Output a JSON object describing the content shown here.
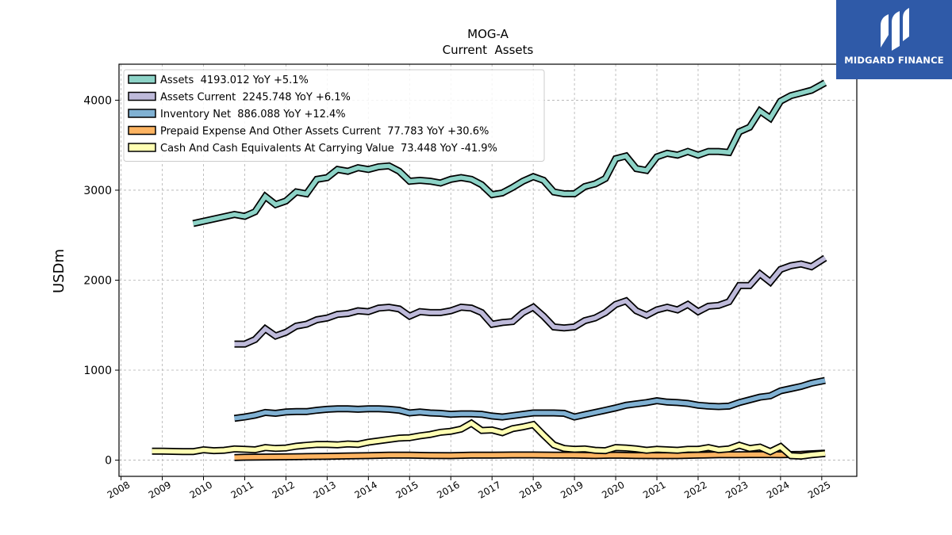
{
  "logo": {
    "text": "MIDGARD FINANCE",
    "icon": "midgard-logo-icon"
  },
  "chart_data": {
    "type": "line",
    "title": "MOG-A",
    "subtitle": "Current  Assets",
    "ylabel": "USDm",
    "xlabel": "",
    "ylim": [
      -180,
      4400
    ],
    "xlim": [
      2007.95,
      2025.85
    ],
    "yticks": [
      0,
      1000,
      2000,
      3000,
      4000
    ],
    "yticklabels": [
      "0",
      "1000",
      "2000",
      "3000",
      "4000"
    ],
    "xticks": [
      2008,
      2009,
      2010,
      2011,
      2012,
      2013,
      2014,
      2015,
      2016,
      2017,
      2018,
      2019,
      2020,
      2021,
      2022,
      2023,
      2024,
      2025
    ],
    "xticklabels": [
      "2008",
      "2009",
      "2010",
      "2011",
      "2012",
      "2013",
      "2014",
      "2015",
      "2016",
      "2017",
      "2018",
      "2019",
      "2020",
      "2021",
      "2022",
      "2023",
      "2024",
      "2025"
    ],
    "grid": true,
    "legend_position": "top-left",
    "series": [
      {
        "name": "Assets  4193.012 YoY +5.1%",
        "color": "#8dd3c7",
        "points": [
          [
            2009.75,
            2630
          ],
          [
            2010.75,
            2730
          ],
          [
            2011.0,
            2710
          ],
          [
            2011.25,
            2760
          ],
          [
            2011.5,
            2930
          ],
          [
            2011.75,
            2840
          ],
          [
            2012.0,
            2880
          ],
          [
            2012.25,
            2980
          ],
          [
            2012.5,
            2960
          ],
          [
            2012.75,
            3120
          ],
          [
            2013.0,
            3140
          ],
          [
            2013.25,
            3230
          ],
          [
            2013.5,
            3210
          ],
          [
            2013.75,
            3250
          ],
          [
            2014.0,
            3230
          ],
          [
            2014.25,
            3260
          ],
          [
            2014.5,
            3270
          ],
          [
            2014.75,
            3210
          ],
          [
            2015.0,
            3100
          ],
          [
            2015.25,
            3110
          ],
          [
            2015.5,
            3100
          ],
          [
            2015.75,
            3080
          ],
          [
            2016.0,
            3120
          ],
          [
            2016.25,
            3140
          ],
          [
            2016.5,
            3120
          ],
          [
            2016.75,
            3060
          ],
          [
            2017.0,
            2950
          ],
          [
            2017.25,
            2970
          ],
          [
            2017.5,
            3030
          ],
          [
            2017.75,
            3100
          ],
          [
            2018.0,
            3150
          ],
          [
            2018.25,
            3110
          ],
          [
            2018.5,
            2980
          ],
          [
            2018.75,
            2960
          ],
          [
            2019.0,
            2960
          ],
          [
            2019.25,
            3040
          ],
          [
            2019.5,
            3070
          ],
          [
            2019.75,
            3130
          ],
          [
            2020.0,
            3350
          ],
          [
            2020.25,
            3380
          ],
          [
            2020.5,
            3240
          ],
          [
            2020.75,
            3220
          ],
          [
            2021.0,
            3370
          ],
          [
            2021.25,
            3410
          ],
          [
            2021.5,
            3390
          ],
          [
            2021.75,
            3430
          ],
          [
            2022.0,
            3390
          ],
          [
            2022.25,
            3430
          ],
          [
            2022.5,
            3430
          ],
          [
            2022.75,
            3420
          ],
          [
            2023.0,
            3650
          ],
          [
            2023.25,
            3700
          ],
          [
            2023.5,
            3880
          ],
          [
            2023.75,
            3800
          ],
          [
            2024.0,
            3990
          ],
          [
            2024.25,
            4050
          ],
          [
            2024.5,
            4080
          ],
          [
            2024.75,
            4110
          ],
          [
            2025.08,
            4193
          ]
        ]
      },
      {
        "name": "Assets Current  2245.748 YoY +6.1%",
        "color": "#bebada",
        "points": [
          [
            2010.75,
            1290
          ],
          [
            2011.0,
            1290
          ],
          [
            2011.25,
            1340
          ],
          [
            2011.5,
            1460
          ],
          [
            2011.75,
            1380
          ],
          [
            2012.0,
            1420
          ],
          [
            2012.25,
            1490
          ],
          [
            2012.5,
            1510
          ],
          [
            2012.75,
            1560
          ],
          [
            2013.0,
            1580
          ],
          [
            2013.25,
            1620
          ],
          [
            2013.5,
            1630
          ],
          [
            2013.75,
            1660
          ],
          [
            2014.0,
            1650
          ],
          [
            2014.25,
            1690
          ],
          [
            2014.5,
            1700
          ],
          [
            2014.75,
            1680
          ],
          [
            2015.0,
            1600
          ],
          [
            2015.25,
            1650
          ],
          [
            2015.5,
            1640
          ],
          [
            2015.75,
            1640
          ],
          [
            2016.0,
            1660
          ],
          [
            2016.25,
            1700
          ],
          [
            2016.5,
            1690
          ],
          [
            2016.75,
            1640
          ],
          [
            2017.0,
            1510
          ],
          [
            2017.25,
            1530
          ],
          [
            2017.5,
            1540
          ],
          [
            2017.75,
            1640
          ],
          [
            2018.0,
            1700
          ],
          [
            2018.25,
            1600
          ],
          [
            2018.5,
            1480
          ],
          [
            2018.75,
            1470
          ],
          [
            2019.0,
            1480
          ],
          [
            2019.25,
            1550
          ],
          [
            2019.5,
            1580
          ],
          [
            2019.75,
            1640
          ],
          [
            2020.0,
            1730
          ],
          [
            2020.25,
            1770
          ],
          [
            2020.5,
            1660
          ],
          [
            2020.75,
            1610
          ],
          [
            2021.0,
            1670
          ],
          [
            2021.25,
            1700
          ],
          [
            2021.5,
            1670
          ],
          [
            2021.75,
            1730
          ],
          [
            2022.0,
            1650
          ],
          [
            2022.25,
            1710
          ],
          [
            2022.5,
            1720
          ],
          [
            2022.75,
            1760
          ],
          [
            2023.0,
            1940
          ],
          [
            2023.25,
            1940
          ],
          [
            2023.5,
            2070
          ],
          [
            2023.75,
            1980
          ],
          [
            2024.0,
            2120
          ],
          [
            2024.25,
            2160
          ],
          [
            2024.5,
            2180
          ],
          [
            2024.75,
            2150
          ],
          [
            2025.08,
            2246
          ]
        ]
      },
      {
        "name": "Inventory Net  886.088 YoY +12.4%",
        "color": "#80b1d3",
        "points": [
          [
            2010.75,
            465
          ],
          [
            2011.0,
            480
          ],
          [
            2011.25,
            500
          ],
          [
            2011.5,
            530
          ],
          [
            2011.75,
            520
          ],
          [
            2012.0,
            535
          ],
          [
            2012.25,
            540
          ],
          [
            2012.5,
            540
          ],
          [
            2012.75,
            555
          ],
          [
            2013.0,
            565
          ],
          [
            2013.25,
            570
          ],
          [
            2013.5,
            570
          ],
          [
            2013.75,
            565
          ],
          [
            2014.0,
            570
          ],
          [
            2014.25,
            570
          ],
          [
            2014.5,
            565
          ],
          [
            2014.75,
            555
          ],
          [
            2015.0,
            525
          ],
          [
            2015.25,
            535
          ],
          [
            2015.5,
            525
          ],
          [
            2015.75,
            520
          ],
          [
            2016.0,
            510
          ],
          [
            2016.25,
            515
          ],
          [
            2016.5,
            515
          ],
          [
            2016.75,
            510
          ],
          [
            2017.0,
            490
          ],
          [
            2017.25,
            480
          ],
          [
            2017.5,
            495
          ],
          [
            2017.75,
            510
          ],
          [
            2018.0,
            525
          ],
          [
            2018.25,
            525
          ],
          [
            2018.5,
            525
          ],
          [
            2018.75,
            520
          ],
          [
            2019.0,
            480
          ],
          [
            2019.25,
            505
          ],
          [
            2019.5,
            530
          ],
          [
            2019.75,
            555
          ],
          [
            2020.0,
            580
          ],
          [
            2020.25,
            610
          ],
          [
            2020.5,
            625
          ],
          [
            2020.75,
            640
          ],
          [
            2021.0,
            660
          ],
          [
            2021.25,
            645
          ],
          [
            2021.5,
            640
          ],
          [
            2021.75,
            630
          ],
          [
            2022.0,
            610
          ],
          [
            2022.25,
            600
          ],
          [
            2022.5,
            595
          ],
          [
            2022.75,
            600
          ],
          [
            2023.0,
            640
          ],
          [
            2023.25,
            670
          ],
          [
            2023.5,
            700
          ],
          [
            2023.75,
            715
          ],
          [
            2024.0,
            770
          ],
          [
            2024.25,
            795
          ],
          [
            2024.5,
            820
          ],
          [
            2024.75,
            855
          ],
          [
            2025.08,
            886
          ]
        ]
      },
      {
        "name": "Prepaid Expense And Other Assets Current  77.783 YoY +30.6%",
        "color": "#fdb462",
        "points": [
          [
            2010.75,
            30
          ],
          [
            2011.0,
            32
          ],
          [
            2011.5,
            35
          ],
          [
            2012.0,
            37
          ],
          [
            2012.5,
            40
          ],
          [
            2013.0,
            43
          ],
          [
            2013.5,
            46
          ],
          [
            2014.0,
            50
          ],
          [
            2014.5,
            55
          ],
          [
            2015.0,
            55
          ],
          [
            2015.5,
            52
          ],
          [
            2016.0,
            50
          ],
          [
            2016.5,
            55
          ],
          [
            2017.0,
            55
          ],
          [
            2017.5,
            58
          ],
          [
            2018.0,
            58
          ],
          [
            2018.5,
            56
          ],
          [
            2019.0,
            55
          ],
          [
            2019.5,
            52
          ],
          [
            2020.0,
            55
          ],
          [
            2020.5,
            52
          ],
          [
            2021.0,
            50
          ],
          [
            2021.5,
            50
          ],
          [
            2022.0,
            55
          ],
          [
            2022.5,
            60
          ],
          [
            2023.0,
            60
          ],
          [
            2023.5,
            62
          ],
          [
            2024.0,
            60
          ],
          [
            2024.5,
            65
          ],
          [
            2025.08,
            78
          ]
        ]
      },
      {
        "name": "Cash And Cash Equivalents At Carrying Value  73.448 YoY -41.9%",
        "color": "#ffffb3",
        "points": [
          [
            2008.75,
            100
          ],
          [
            2009.0,
            100
          ],
          [
            2009.5,
            95
          ],
          [
            2009.75,
            95
          ],
          [
            2010.0,
            115
          ],
          [
            2010.25,
            105
          ],
          [
            2010.5,
            110
          ],
          [
            2010.75,
            125
          ],
          [
            2011.0,
            120
          ],
          [
            2011.25,
            115
          ],
          [
            2011.5,
            140
          ],
          [
            2011.75,
            130
          ],
          [
            2012.0,
            135
          ],
          [
            2012.25,
            155
          ],
          [
            2012.5,
            165
          ],
          [
            2012.75,
            175
          ],
          [
            2013.0,
            175
          ],
          [
            2013.25,
            170
          ],
          [
            2013.5,
            180
          ],
          [
            2013.75,
            175
          ],
          [
            2014.0,
            200
          ],
          [
            2014.25,
            215
          ],
          [
            2014.5,
            230
          ],
          [
            2014.75,
            245
          ],
          [
            2015.0,
            250
          ],
          [
            2015.25,
            270
          ],
          [
            2015.5,
            285
          ],
          [
            2015.75,
            310
          ],
          [
            2016.0,
            320
          ],
          [
            2016.25,
            345
          ],
          [
            2016.5,
            410
          ],
          [
            2016.75,
            330
          ],
          [
            2017.0,
            335
          ],
          [
            2017.25,
            305
          ],
          [
            2017.5,
            350
          ],
          [
            2017.75,
            370
          ],
          [
            2018.0,
            395
          ],
          [
            2018.25,
            280
          ],
          [
            2018.5,
            170
          ],
          [
            2018.75,
            130
          ],
          [
            2019.0,
            120
          ],
          [
            2019.25,
            125
          ],
          [
            2019.5,
            110
          ],
          [
            2019.75,
            105
          ],
          [
            2020.0,
            140
          ],
          [
            2020.25,
            135
          ],
          [
            2020.5,
            125
          ],
          [
            2020.75,
            110
          ],
          [
            2021.0,
            120
          ],
          [
            2021.25,
            115
          ],
          [
            2021.5,
            110
          ],
          [
            2021.75,
            120
          ],
          [
            2022.0,
            120
          ],
          [
            2022.25,
            140
          ],
          [
            2022.5,
            115
          ],
          [
            2022.75,
            125
          ],
          [
            2023.0,
            165
          ],
          [
            2023.25,
            130
          ],
          [
            2023.5,
            145
          ],
          [
            2023.75,
            95
          ],
          [
            2024.0,
            150
          ],
          [
            2024.25,
            50
          ],
          [
            2024.5,
            45
          ],
          [
            2024.75,
            60
          ],
          [
            2025.08,
            73
          ]
        ]
      }
    ]
  }
}
